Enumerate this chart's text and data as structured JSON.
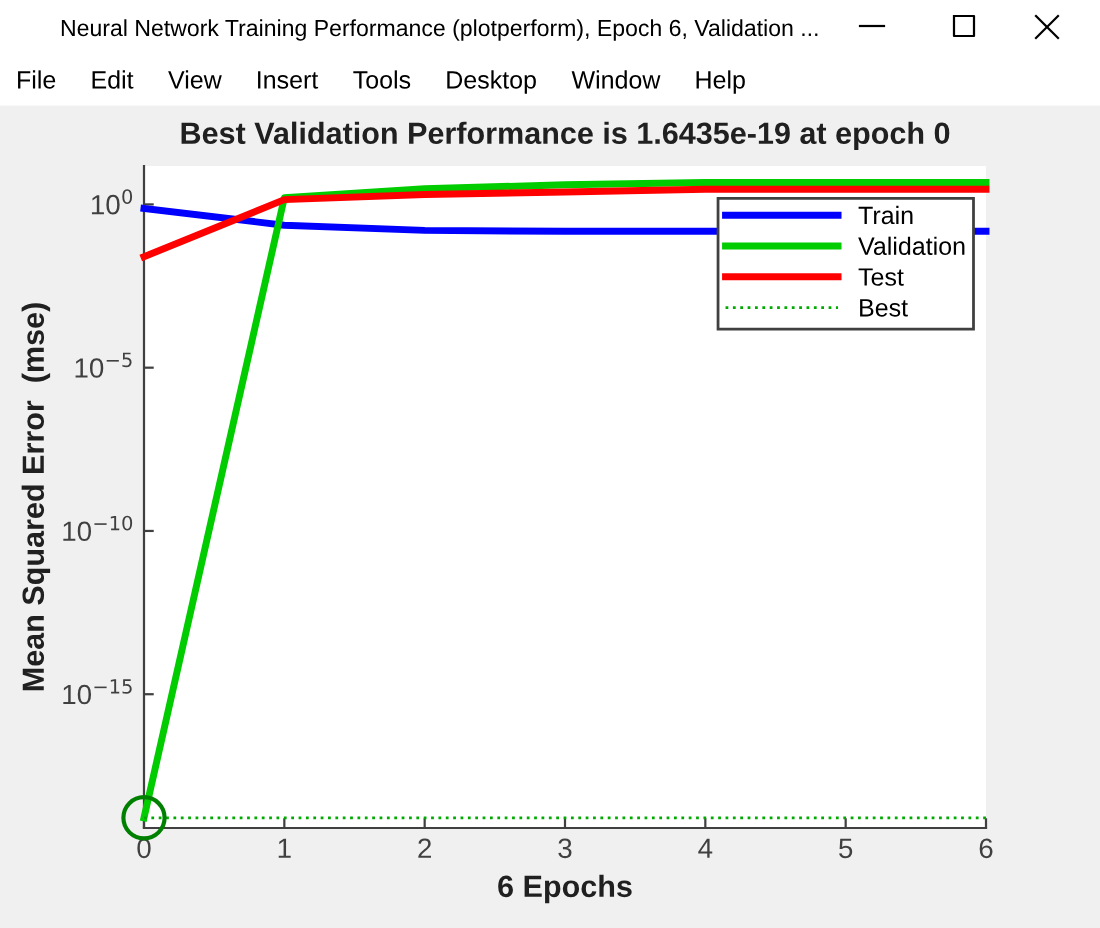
{
  "chart_data": {
    "type": "line",
    "title": "Best Validation Performance is 1.6435e-19 at epoch 0",
    "xlabel": "6 Epochs",
    "ylabel": "Mean Squared Error  (mse)",
    "annotations": [
      "Neural Network Training Performance (plotperform), Epoch 6, Validation ...",
      "File",
      "Edit",
      "View",
      "Insert",
      "Tools",
      "Desktop",
      "Window",
      "Help"
    ],
    "x": [
      0,
      1,
      2,
      3,
      4,
      5,
      6
    ],
    "series": [
      {
        "name": "Train",
        "color": "#0000ff",
        "values": [
          0.75,
          0.23,
          0.16,
          0.15,
          0.15,
          null,
          0.15
        ]
      },
      {
        "name": "Validation",
        "color": "#00cc00",
        "values": [
          1.6435e-19,
          1.6,
          3,
          4,
          4.7,
          4.7,
          4.7
        ]
      },
      {
        "name": "Test",
        "color": "#ff0000",
        "values": [
          0.025,
          1.4,
          2,
          2.4,
          2.9,
          2.9,
          2.9
        ]
      },
      {
        "name": "Best",
        "color": "#00aa00",
        "values": [
          1.6435e-19,
          1.6435e-19,
          1.6435e-19,
          1.6435e-19,
          1.6435e-19,
          1.6435e-19,
          1.6435e-19
        ],
        "line_style": "dotted"
      },
      {
        "type": "scatter",
        "color": "#008000",
        "x": [
          0
        ],
        "values": [
          1.6435e-19
        ],
        "marker": "circle"
      }
    ],
    "log": "y",
    "xlim": [
      0,
      6
    ],
    "xticks": [
      0,
      1,
      2,
      3,
      4,
      5,
      6
    ],
    "ylim": [
      8e-20,
      15
    ],
    "yticks": [
      {
        "value": 1,
        "label": "10$^{0}$"
      },
      {
        "value": 1e-05,
        "label": "10$^{−5}$"
      },
      {
        "value": 1e-10,
        "label": "10$^{−10}$"
      },
      {
        "value": 1e-15,
        "label": "10$^{−15}$"
      }
    ],
    "grid": false,
    "legend": "top right"
  }
}
